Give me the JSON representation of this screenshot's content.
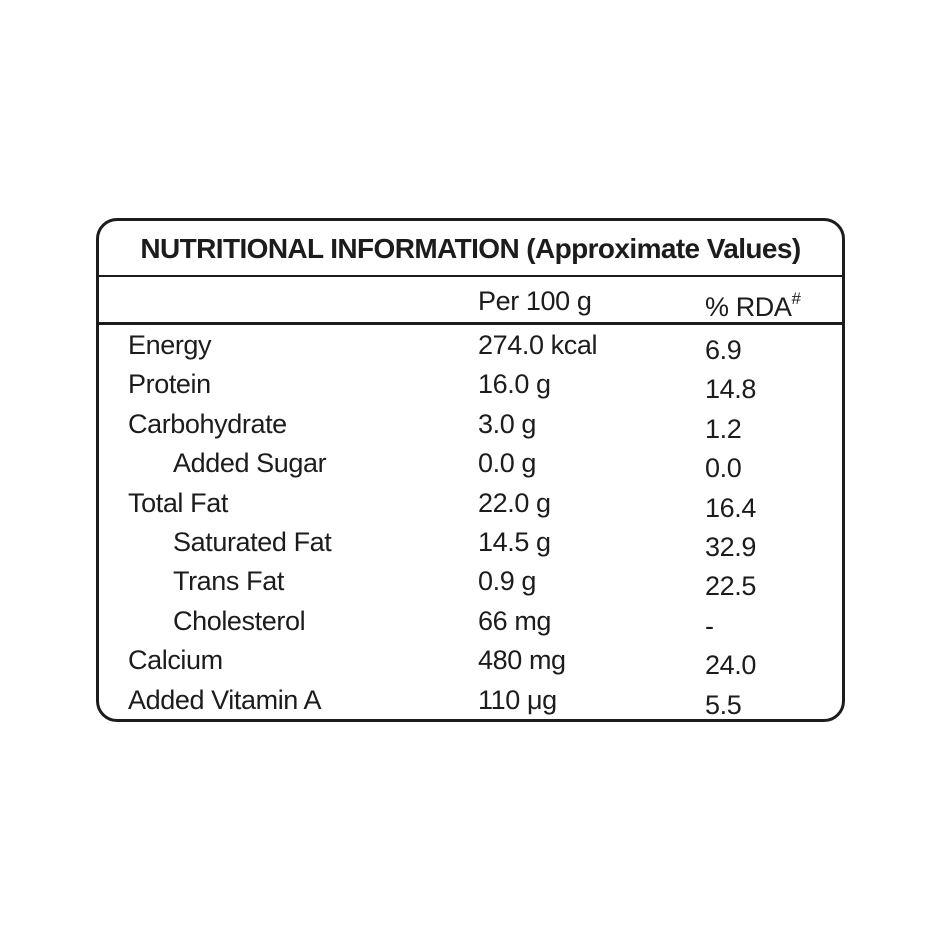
{
  "page": {
    "background_color": "#ffffff",
    "text_color": "#1c1c1c",
    "border_color": "#1c1c1c"
  },
  "label": {
    "title": "NUTRITIONAL INFORMATION (Approximate Values)",
    "columns": {
      "amount": "Per 100 g",
      "rda": "% RDA",
      "rda_superscript": "#"
    },
    "rows": [
      {
        "name": "Energy",
        "indent": false,
        "amount": "274.0 kcal",
        "rda": "6.9"
      },
      {
        "name": "Protein",
        "indent": false,
        "amount": "16.0 g",
        "rda": "14.8"
      },
      {
        "name": "Carbohydrate",
        "indent": false,
        "amount": "3.0 g",
        "rda": "1.2"
      },
      {
        "name": "Added Sugar",
        "indent": true,
        "amount": "0.0 g",
        "rda": "0.0"
      },
      {
        "name": "Total Fat",
        "indent": false,
        "amount": "22.0 g",
        "rda": "16.4"
      },
      {
        "name": "Saturated Fat",
        "indent": true,
        "amount": "14.5 g",
        "rda": "32.9"
      },
      {
        "name": "Trans Fat",
        "indent": true,
        "amount": "0.9 g",
        "rda": "22.5"
      },
      {
        "name": "Cholesterol",
        "indent": true,
        "amount": "66 mg",
        "rda": "-"
      },
      {
        "name": "Calcium",
        "indent": false,
        "amount": "480 mg",
        "rda": "24.0"
      },
      {
        "name": "Added Vitamin A",
        "indent": false,
        "amount": "110 μg",
        "rda": "5.5"
      }
    ]
  }
}
